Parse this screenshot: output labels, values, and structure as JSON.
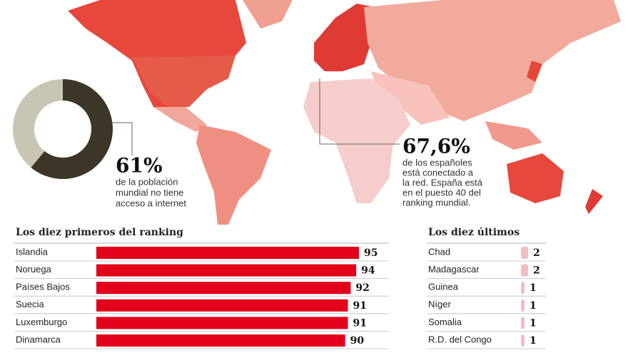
{
  "chart_data": [
    {
      "type": "pie",
      "values": [
        61,
        39
      ],
      "value_labels": [
        "61%",
        null
      ],
      "colors": [
        "#3b3628",
        "#c9c5b4"
      ],
      "caption": [
        "de la población",
        "mundial no tiene",
        "acceso a internet"
      ]
    },
    {
      "type": "bar",
      "orientation": "horizontal",
      "title": "Los diez primeros del ranking",
      "categories": [
        "Islandia",
        "Noruega",
        "Países Bajos",
        "Suecia",
        "Luxemburgo",
        "Dinamarca"
      ],
      "values": [
        95,
        94,
        92,
        91,
        91,
        90
      ],
      "color": "#e2001a",
      "xlim": [
        0,
        95
      ]
    },
    {
      "type": "bar",
      "orientation": "horizontal",
      "title": "Los diez últimos",
      "categories": [
        "Chad",
        "Madagascar",
        "Guinea",
        "Níger",
        "Somalia",
        "R.D. del Congo"
      ],
      "values": [
        2,
        2,
        1,
        1,
        1,
        1
      ],
      "color": "#f4bcc4",
      "xlim": [
        0,
        20
      ]
    }
  ],
  "map": {
    "highlight": "67,6%",
    "text": [
      "de los españoles",
      "está conectado a",
      "la red. España está",
      "en el puesto 40 del",
      "ranking mundial."
    ]
  }
}
